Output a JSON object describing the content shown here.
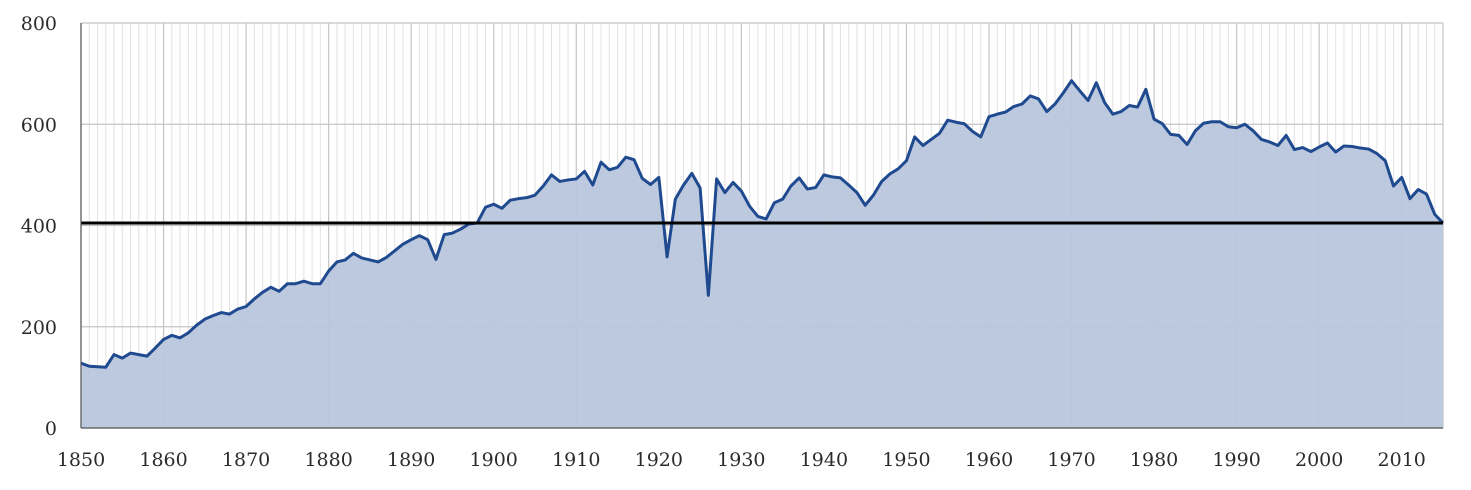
{
  "chart_data": {
    "type": "area",
    "title": "",
    "xlabel": "",
    "ylabel": "",
    "xlim": [
      1850,
      2015
    ],
    "ylim": [
      0,
      800
    ],
    "x_ticks": [
      "1850",
      "1860",
      "1870",
      "1880",
      "1890",
      "1900",
      "1910",
      "1920",
      "1930",
      "1940",
      "1950",
      "1960",
      "1970",
      "1980",
      "1990",
      "2000",
      "2010"
    ],
    "y_ticks": [
      "0",
      "200",
      "400",
      "600",
      "800"
    ],
    "grid": true,
    "reference_line": 405,
    "colors": {
      "line": "#1f4a8f",
      "fill": "#b9c6dc",
      "reference": "#000000",
      "grid_major": "#c4c4c4",
      "grid_minor": "#e2e2e2"
    },
    "series": [
      {
        "x": [
          1850,
          1851,
          1852,
          1853,
          1854,
          1855,
          1856,
          1857,
          1858,
          1859,
          1860,
          1861,
          1862,
          1863,
          1864,
          1865,
          1866,
          1867,
          1868,
          1869,
          1870,
          1871,
          1872,
          1873,
          1874,
          1875,
          1876,
          1877,
          1878,
          1879,
          1880,
          1881,
          1882,
          1883,
          1884,
          1885,
          1886,
          1887,
          1888,
          1889,
          1890,
          1891,
          1892,
          1893,
          1894,
          1895,
          1896,
          1897,
          1898,
          1899,
          1900,
          1901,
          1902,
          1903,
          1904,
          1905,
          1906,
          1907,
          1908,
          1909,
          1910,
          1911,
          1912,
          1913,
          1914,
          1915,
          1916,
          1917,
          1918,
          1919,
          1920,
          1921,
          1922,
          1923,
          1924,
          1925,
          1926,
          1927,
          1928,
          1929,
          1930,
          1931,
          1932,
          1933,
          1934,
          1935,
          1936,
          1937,
          1938,
          1939,
          1940,
          1941,
          1942,
          1943,
          1944,
          1945,
          1946,
          1947,
          1948,
          1949,
          1950,
          1951,
          1952,
          1953,
          1954,
          1955,
          1956,
          1957,
          1958,
          1959,
          1960,
          1961,
          1962,
          1963,
          1964,
          1965,
          1966,
          1967,
          1968,
          1969,
          1970,
          1971,
          1972,
          1973,
          1974,
          1975,
          1976,
          1977,
          1978,
          1979,
          1980,
          1981,
          1982,
          1983,
          1984,
          1985,
          1986,
          1987,
          1988,
          1989,
          1990,
          1991,
          1992,
          1993,
          1994,
          1995,
          1996,
          1997,
          1998,
          1999,
          2000,
          2001,
          2002,
          2003,
          2004,
          2005,
          2006,
          2007,
          2008,
          2009,
          2010,
          2011,
          2012,
          2013,
          2014,
          2015
        ],
        "values": [
          128,
          122,
          121,
          120,
          145,
          138,
          148,
          145,
          142,
          158,
          175,
          183,
          178,
          188,
          203,
          215,
          222,
          228,
          225,
          235,
          240,
          255,
          268,
          278,
          270,
          285,
          285,
          290,
          285,
          285,
          310,
          328,
          332,
          345,
          336,
          332,
          328,
          337,
          350,
          363,
          372,
          380,
          372,
          333,
          382,
          385,
          393,
          403,
          405,
          436,
          442,
          434,
          450,
          453,
          455,
          460,
          478,
          500,
          487,
          490,
          492,
          507,
          480,
          525,
          510,
          515,
          535,
          530,
          493,
          481,
          495,
          338,
          452,
          480,
          503,
          474,
          262,
          492,
          465,
          485,
          468,
          438,
          418,
          413,
          445,
          452,
          478,
          494,
          472,
          475,
          500,
          496,
          494,
          480,
          465,
          440,
          460,
          487,
          502,
          512,
          528,
          575,
          558,
          570,
          582,
          608,
          604,
          601,
          586,
          575,
          615,
          620,
          624,
          635,
          640,
          656,
          650,
          625,
          640,
          662,
          686,
          666,
          647,
          682,
          643,
          620,
          625,
          637,
          634,
          669,
          610,
          601,
          580,
          578,
          560,
          587,
          602,
          605,
          605,
          595,
          593,
          600,
          587,
          570,
          565,
          558,
          578,
          550,
          554,
          546,
          555,
          563,
          545,
          557,
          556,
          553,
          551,
          542,
          528,
          478,
          495,
          453,
          471,
          462,
          422,
          405
        ]
      }
    ]
  }
}
